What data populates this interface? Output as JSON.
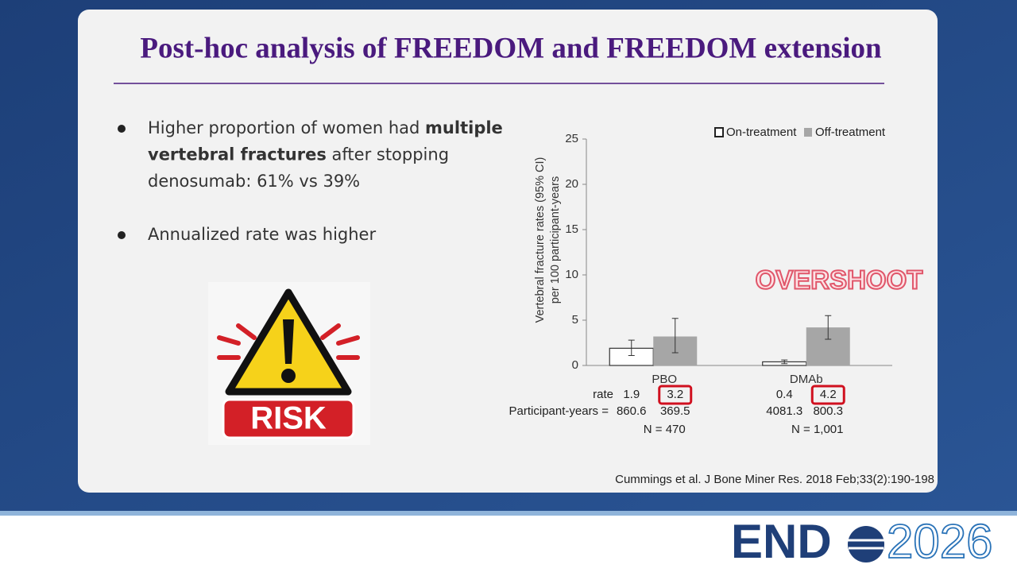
{
  "title": "Post-hoc analysis of FREEDOM and FREEDOM extension",
  "bullets": [
    {
      "lines": [
        [
          {
            "text": "Higher proportion of women had ",
            "bold": false
          },
          {
            "text": "multiple",
            "bold": true
          }
        ],
        [
          {
            "text": "vertebral fractures",
            "bold": true
          },
          {
            "text": " after stopping",
            "bold": false
          }
        ],
        [
          {
            "text": "denosumab: 61% vs 39%",
            "bold": false
          }
        ]
      ]
    },
    {
      "lines": [
        [
          {
            "text": "Annualized rate was higher",
            "bold": false
          }
        ]
      ]
    }
  ],
  "risk_sign": "RISK",
  "chart_data": {
    "type": "bar",
    "y_label": [
      "Vertebral fracture rates (95% CI)",
      "per 100 participant-years"
    ],
    "categories": [
      "PBO",
      "DMAb"
    ],
    "series": [
      {
        "name": "On-treatment",
        "color": "#ffffff",
        "values": [
          1.9,
          0.4
        ],
        "ci": [
          [
            1.1,
            2.8
          ],
          [
            0.2,
            0.6
          ]
        ]
      },
      {
        "name": "Off-treatment",
        "color": "#a6a6a6",
        "values": [
          3.2,
          4.2
        ],
        "ci": [
          [
            1.4,
            5.2
          ],
          [
            2.9,
            5.5
          ]
        ]
      }
    ],
    "ylim": [
      0,
      25
    ],
    "yticks": [
      0,
      5,
      10,
      15,
      20,
      25
    ],
    "legend": "top-right",
    "rate_label": "rate",
    "participant_years_label": "Participant-years =",
    "participant_years": [
      [
        860.6,
        369.5
      ],
      [
        4081.3,
        800.3
      ]
    ],
    "n_labels": [
      "N = 470",
      "N = 1,001"
    ],
    "annotation": "OVERSHOOT"
  },
  "citation": "Cummings et al. J Bone Miner Res. 2018 Feb;33(2):190-198",
  "logo": {
    "left": "END",
    "right": "2026"
  }
}
